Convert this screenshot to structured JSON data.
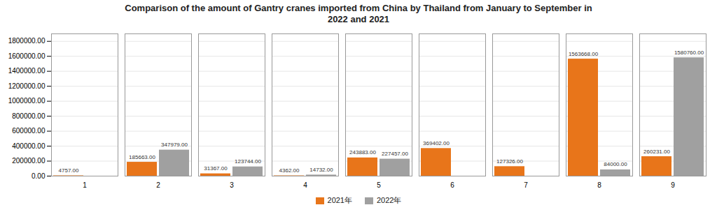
{
  "chart_data": {
    "type": "bar",
    "title": "Comparison of the amount of Gantry cranes imported from China by Thailand from January to September in\n2022 and 2021",
    "categories": [
      1,
      2,
      3,
      4,
      5,
      6,
      7,
      8,
      9
    ],
    "series": [
      {
        "name": "2021年",
        "color": "#E8751A",
        "values": [
          4757,
          185663,
          31367,
          4362,
          243883,
          369402,
          127326,
          1563668,
          260231
        ],
        "value_labels": [
          "4757.00",
          "185663.00",
          "31367.00",
          "4362.00",
          "243883.00",
          "369402.00",
          "127326.00",
          "1563668.00",
          "260231.00"
        ]
      },
      {
        "name": "2022年",
        "color": "#A0A0A0",
        "values": [
          0,
          347979,
          123744,
          14732,
          227457,
          0,
          0,
          84000,
          1580760
        ],
        "value_labels": [
          null,
          "347979.00",
          "123744.00",
          "14732.00",
          "227457.00",
          null,
          null,
          "84000.00",
          "1580760.00"
        ]
      }
    ],
    "ylim": [
      0,
      1900000
    ],
    "yticks": [
      {
        "value": 0,
        "label": "0.00"
      },
      {
        "value": 200000,
        "label": "200000.00"
      },
      {
        "value": 400000,
        "label": "400000.00"
      },
      {
        "value": 600000,
        "label": "600000.00"
      },
      {
        "value": 800000,
        "label": "800000.00"
      },
      {
        "value": 1000000,
        "label": "1000000.00"
      },
      {
        "value": 1200000,
        "label": "1200000.00"
      },
      {
        "value": 1400000,
        "label": "1400000.00"
      },
      {
        "value": 1600000,
        "label": "1600000.00"
      },
      {
        "value": 1800000,
        "label": "1800000.00"
      }
    ],
    "grid": true,
    "legend": "bottom",
    "data_labels": true
  }
}
